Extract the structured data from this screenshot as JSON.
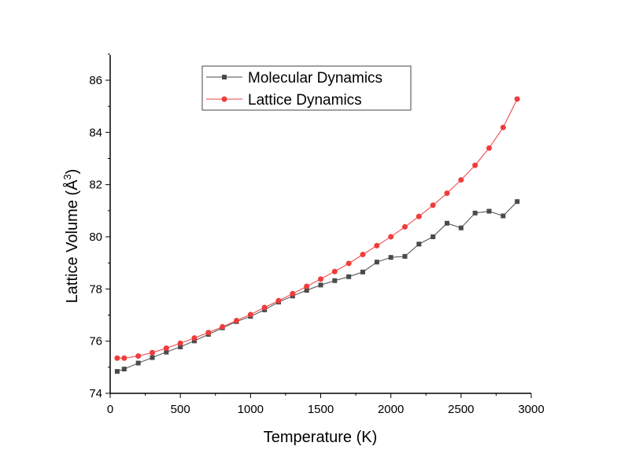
{
  "chart_data": {
    "type": "line",
    "xlabel": "Temperature (K)",
    "ylabel": "Lattice Volume (Å",
    "ylabel_sup": "3",
    "ylabel_tail": ")",
    "xlim": [
      0,
      3000
    ],
    "ylim": [
      74,
      87
    ],
    "xticks": [
      0,
      500,
      1000,
      1500,
      2000,
      2500,
      3000
    ],
    "yticks": [
      74,
      76,
      78,
      80,
      82,
      84,
      86
    ],
    "grid": false,
    "legend_position": "top-left",
    "x": [
      50,
      100,
      200,
      300,
      400,
      500,
      600,
      700,
      800,
      900,
      1000,
      1100,
      1200,
      1300,
      1400,
      1500,
      1600,
      1700,
      1800,
      1900,
      2000,
      2100,
      2200,
      2300,
      2400,
      2500,
      2600,
      2700,
      2800,
      2900
    ],
    "series": [
      {
        "name": "Molecular Dynamics",
        "color": "#4a4a4a",
        "marker": "square",
        "values": [
          74.84,
          74.93,
          75.16,
          75.37,
          75.58,
          75.78,
          76.01,
          76.26,
          76.51,
          76.75,
          76.95,
          77.2,
          77.5,
          77.73,
          77.95,
          78.15,
          78.32,
          78.47,
          78.65,
          79.03,
          79.21,
          79.25,
          79.72,
          80.0,
          80.52,
          80.34,
          80.91,
          80.98,
          80.8,
          81.35
        ]
      },
      {
        "name": "Lattice Dynamics",
        "color": "#f03c3c",
        "marker": "circle",
        "values": [
          75.35,
          75.35,
          75.43,
          75.56,
          75.73,
          75.92,
          76.12,
          76.33,
          76.55,
          76.79,
          77.02,
          77.29,
          77.55,
          77.82,
          78.1,
          78.38,
          78.67,
          78.98,
          79.32,
          79.66,
          80.0,
          80.38,
          80.78,
          81.21,
          81.67,
          82.18,
          82.74,
          83.4,
          84.19,
          85.28
        ]
      }
    ]
  }
}
